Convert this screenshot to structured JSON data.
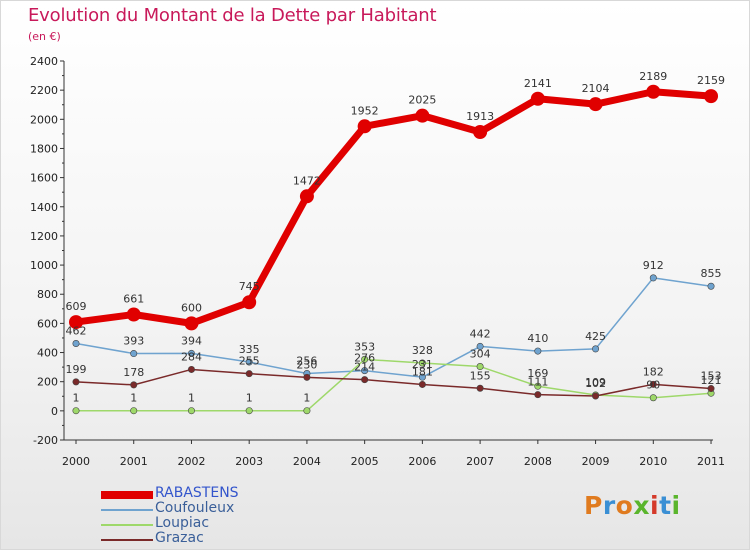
{
  "title": "Evolution du Montant de la Dette par Habitant",
  "subtitle": "(en €)",
  "logo": {
    "text": "Proxiti",
    "colors": [
      "#e07b1f",
      "#3a8fd4",
      "#e07b1f",
      "#5ab52c",
      "#d43a2a",
      "#3a8fd4",
      "#5ab52c"
    ]
  },
  "chart_data": {
    "type": "line",
    "title": "Evolution du Montant de la Dette par Habitant",
    "subtitle": "(en €)",
    "xlabel": "",
    "ylabel": "",
    "categories": [
      "2000",
      "2001",
      "2002",
      "2003",
      "2004",
      "2005",
      "2006",
      "2007",
      "2008",
      "2009",
      "2010",
      "2011"
    ],
    "ylim": [
      -200,
      2400
    ],
    "yticks": [
      -200,
      0,
      200,
      400,
      600,
      800,
      1000,
      1200,
      1400,
      1600,
      1800,
      2000,
      2200,
      2400
    ],
    "grid": false,
    "legend_position": "bottom-left",
    "series": [
      {
        "name": "RABASTENS",
        "color": "#e00000",
        "bold": true,
        "values": [
          609,
          661,
          600,
          745,
          1472,
          1952,
          2025,
          1913,
          2141,
          2104,
          2189,
          2159
        ],
        "labels": [
          "609",
          "661",
          "600",
          "745",
          "1472",
          "1952",
          "2025",
          "1913",
          "2141",
          "2104",
          "2189",
          "2159"
        ]
      },
      {
        "name": "Coufouleux",
        "color": "#6fa3cf",
        "bold": false,
        "values": [
          462,
          393,
          394,
          335,
          256,
          276,
          231,
          442,
          410,
          425,
          912,
          855
        ],
        "labels": [
          "462",
          "393",
          "394",
          "335",
          "256",
          "276",
          "231",
          "442",
          "410",
          "425",
          "912",
          "855"
        ]
      },
      {
        "name": "Loupiac",
        "color": "#9ed86a",
        "bold": false,
        "values": [
          1,
          1,
          1,
          1,
          1,
          353,
          328,
          304,
          169,
          109,
          90,
          121
        ],
        "labels": [
          "1",
          "1",
          "1",
          "1",
          "1",
          "353",
          "328",
          "304",
          "169",
          "109",
          "90",
          "121"
        ]
      },
      {
        "name": "Grazac",
        "color": "#7a2a2a",
        "bold": false,
        "values": [
          199,
          178,
          284,
          255,
          230,
          214,
          181,
          155,
          111,
          102,
          182,
          153
        ],
        "labels": [
          "199",
          "178",
          "284",
          "255",
          "230",
          "214",
          "181",
          "155",
          "111",
          "102",
          "182",
          "153"
        ]
      }
    ]
  }
}
